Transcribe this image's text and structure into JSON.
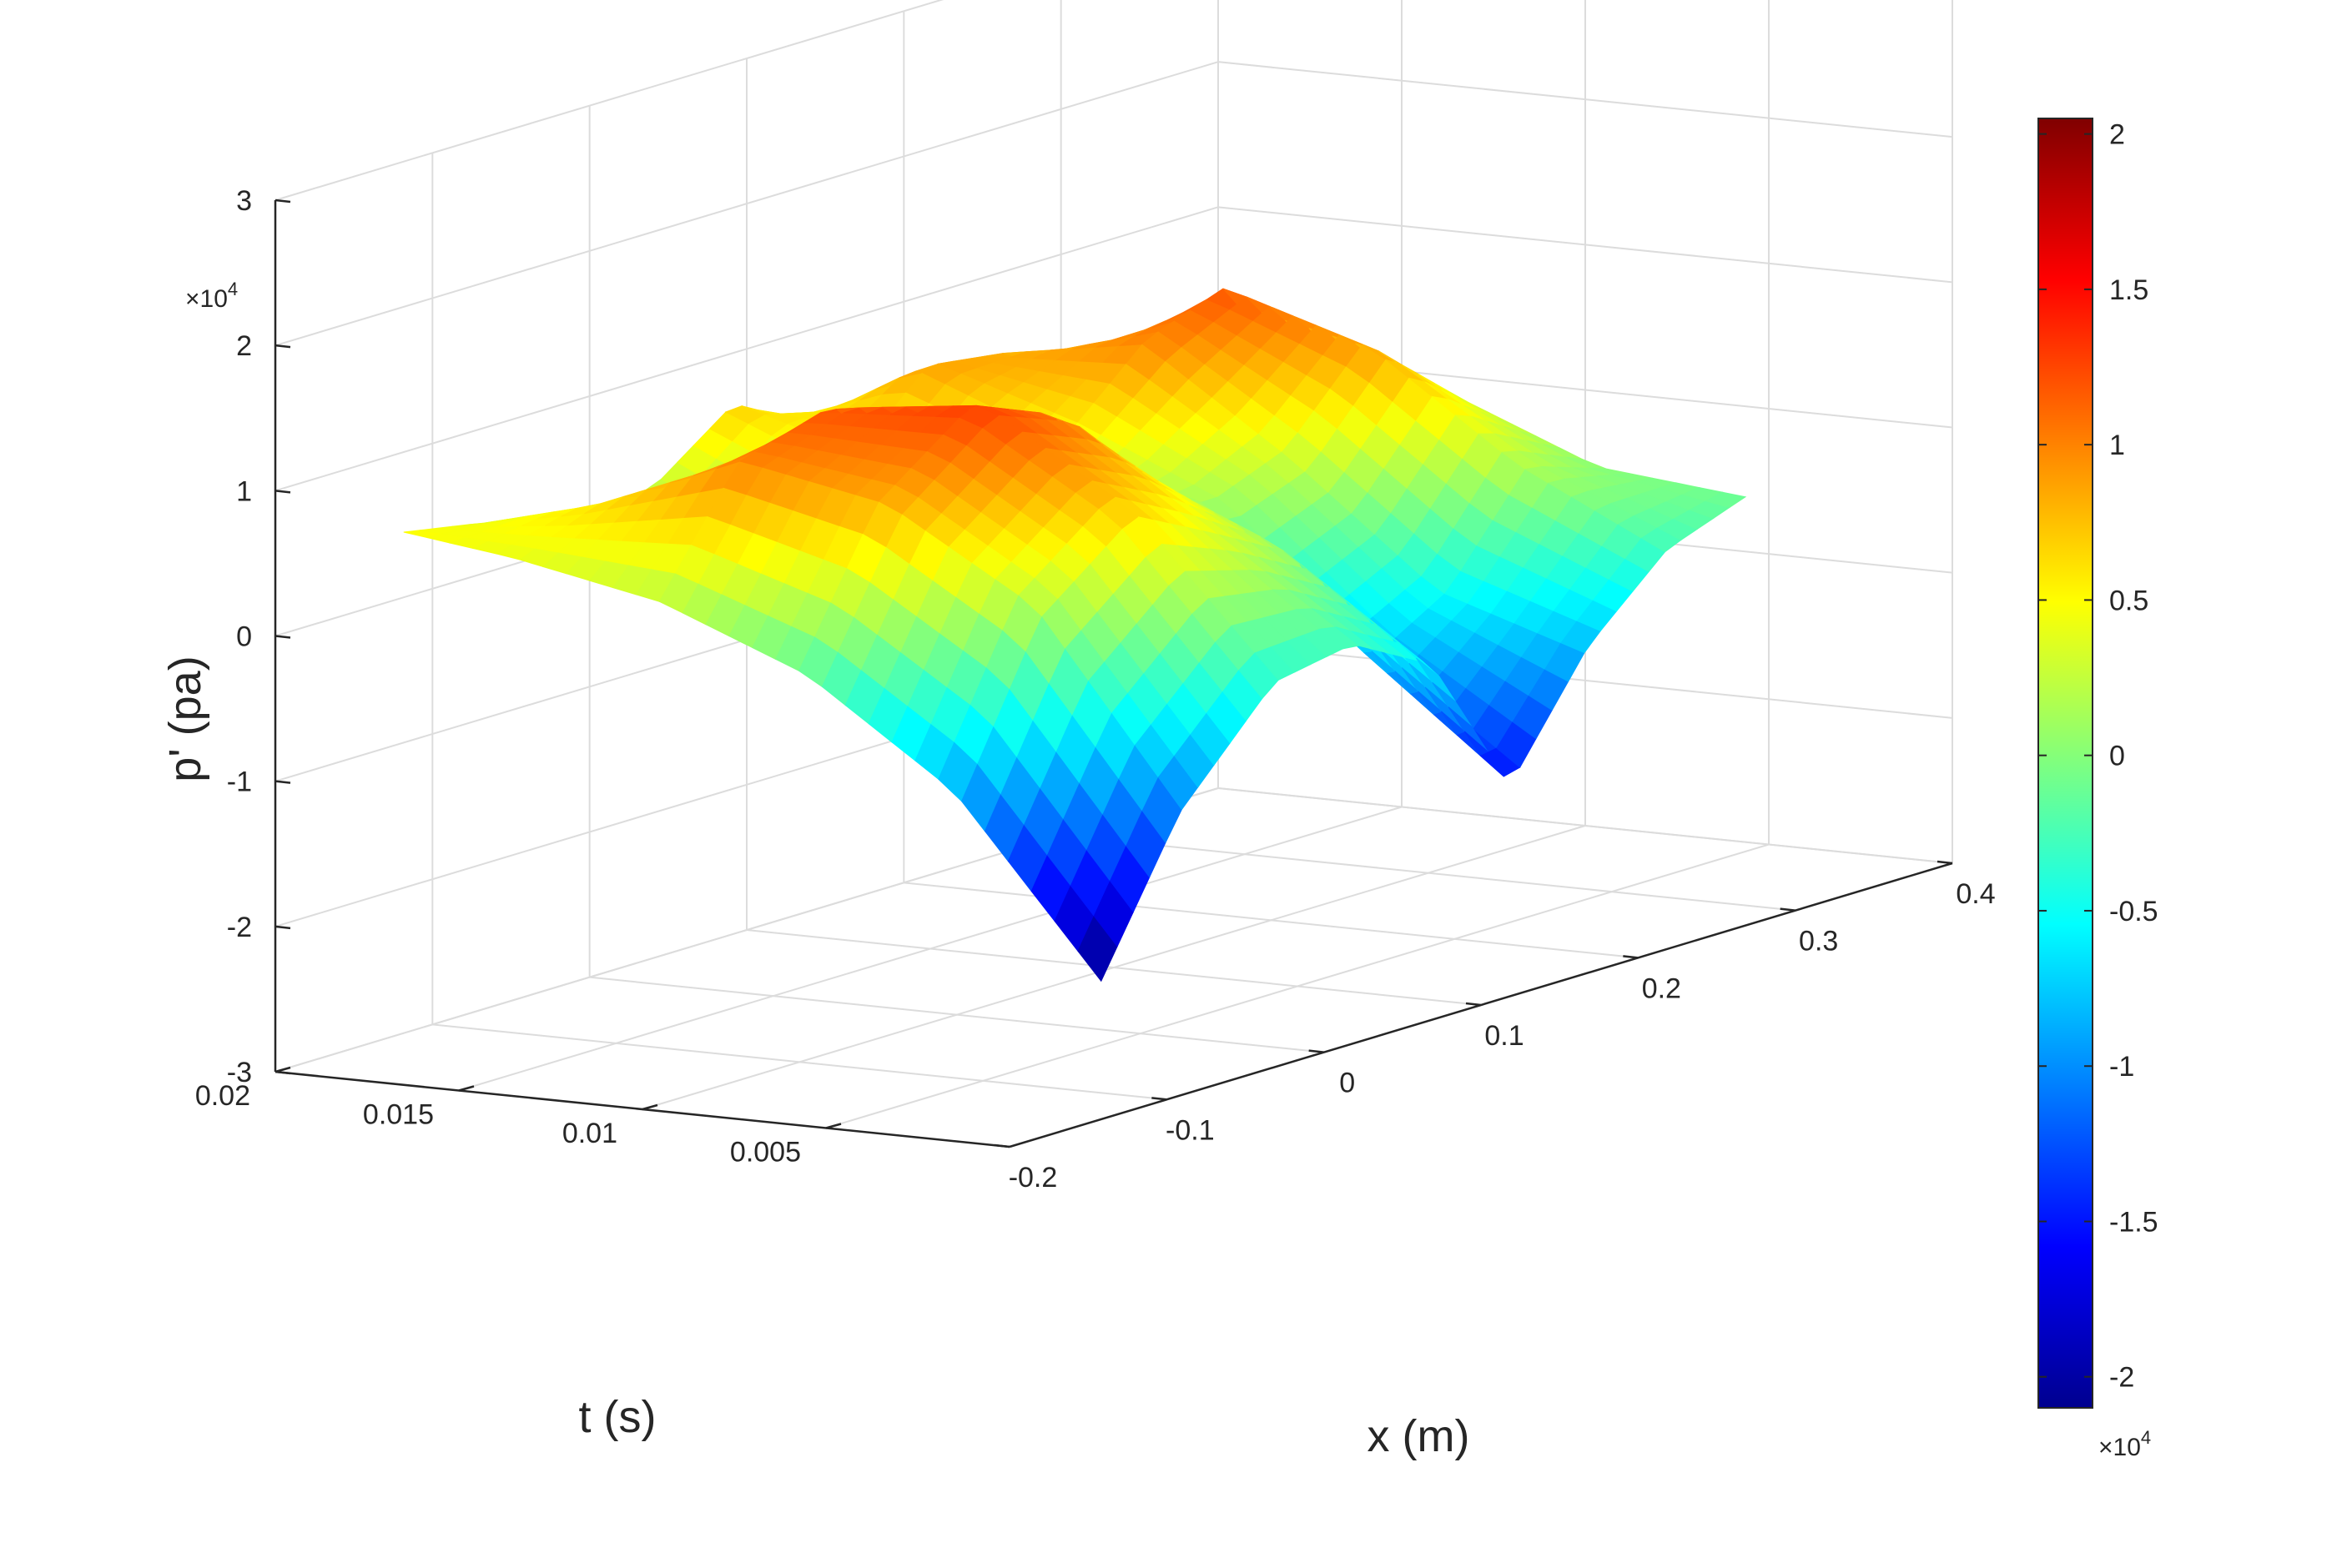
{
  "chart_data": {
    "type": "surface",
    "colormap": "jet",
    "view": "3-D surface, MATLAB-style box with grid",
    "grid": true,
    "xlabel": "x (m)",
    "ylabel": "t (s)",
    "zlabel": "p' (pa)",
    "x_ticks": [
      "-0.2",
      "-0.1",
      "0",
      "0.1",
      "0.2",
      "0.3",
      "0.4"
    ],
    "y_ticks": [
      "0.005",
      "0.01",
      "0.015",
      "0.02"
    ],
    "z_ticks": [
      "-3",
      "-2",
      "-1",
      "0",
      "1",
      "2",
      "3"
    ],
    "z_exponent": {
      "base": "×10",
      "power": "4"
    },
    "xlim": [
      -0.2,
      0.4
    ],
    "ylim": [
      0,
      0.02
    ],
    "zlim": [
      -30000,
      30000
    ],
    "colorbar": {
      "ticks": [
        "-2",
        "-1.5",
        "-1",
        "-0.5",
        "0",
        "0.5",
        "1",
        "1.5",
        "2"
      ],
      "limits": [
        -21000,
        20500
      ],
      "exponent": {
        "base": "×10",
        "power": "4"
      }
    },
    "surface_description_x": [
      -0.13,
      -0.08,
      -0.02,
      0.03,
      0.08,
      0.13,
      0.18,
      0.23,
      0.28
    ],
    "surface_description_t": [
      0.0005,
      0.0045,
      0.0085,
      0.0125,
      0.0165,
      0.0195
    ],
    "z_values": [
      [
        -21000,
        -11000,
        -4000,
        -3000,
        -6000,
        -16000,
        -8000,
        -3000,
        -1000
      ],
      [
        -9000,
        2000,
        7000,
        4000,
        1000,
        -8000,
        -5000,
        2000,
        0
      ],
      [
        -2000,
        8000,
        13000,
        11000,
        5000,
        1000,
        3000,
        9000,
        4000
      ],
      [
        2000,
        10000,
        12000,
        6000,
        1000,
        5000,
        10000,
        12000,
        3000
      ],
      [
        4000,
        6000,
        3000,
        -1000,
        4000,
        9000,
        8000,
        4000,
        1000
      ],
      [
        5000,
        4000,
        2000,
        3000,
        7000,
        4000,
        1000,
        0,
        0
      ]
    ]
  }
}
